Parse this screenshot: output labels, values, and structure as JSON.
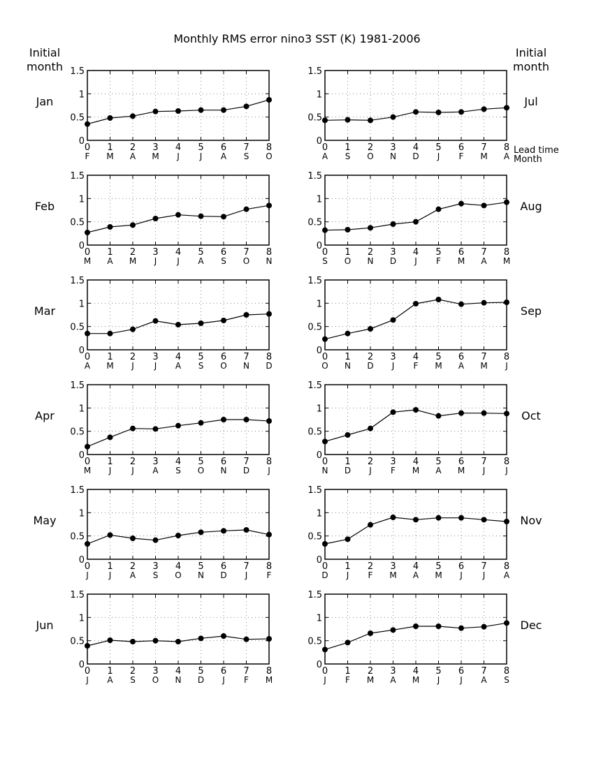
{
  "title": "Monthly RMS error   nino3 SST (K) 1981-2006",
  "left_header": [
    "Initial",
    "month"
  ],
  "right_header": [
    "Initial",
    "month"
  ],
  "lead_time_label": "Lead time",
  "month_axis_label": "Month",
  "chart_data": [
    {
      "type": "line",
      "panel": "Jan",
      "x": [
        0,
        1,
        2,
        3,
        4,
        5,
        6,
        7,
        8
      ],
      "months": [
        "F",
        "M",
        "A",
        "M",
        "J",
        "J",
        "A",
        "S",
        "O"
      ],
      "values": [
        0.35,
        0.48,
        0.52,
        0.62,
        0.63,
        0.65,
        0.65,
        0.73,
        0.87
      ],
      "ylim": [
        0,
        1.5
      ],
      "yticks": [
        "0",
        "0.5",
        "1",
        "1.5"
      ]
    },
    {
      "type": "line",
      "panel": "Jul",
      "x": [
        0,
        1,
        2,
        3,
        4,
        5,
        6,
        7,
        8
      ],
      "months": [
        "A",
        "S",
        "O",
        "N",
        "D",
        "J",
        "F",
        "M",
        "A"
      ],
      "values": [
        0.43,
        0.44,
        0.43,
        0.5,
        0.61,
        0.6,
        0.61,
        0.67,
        0.7
      ],
      "ylim": [
        0,
        1.5
      ],
      "yticks": [
        "0",
        "0.5",
        "1",
        "1.5"
      ]
    },
    {
      "type": "line",
      "panel": "Feb",
      "x": [
        0,
        1,
        2,
        3,
        4,
        5,
        6,
        7,
        8
      ],
      "months": [
        "M",
        "A",
        "M",
        "J",
        "J",
        "A",
        "S",
        "O",
        "N"
      ],
      "values": [
        0.27,
        0.39,
        0.43,
        0.57,
        0.65,
        0.62,
        0.61,
        0.77,
        0.85
      ],
      "ylim": [
        0,
        1.5
      ],
      "yticks": [
        "0",
        "0.5",
        "1",
        "1.5"
      ]
    },
    {
      "type": "line",
      "panel": "Aug",
      "x": [
        0,
        1,
        2,
        3,
        4,
        5,
        6,
        7,
        8
      ],
      "months": [
        "S",
        "O",
        "N",
        "D",
        "J",
        "F",
        "M",
        "A",
        "M"
      ],
      "values": [
        0.32,
        0.33,
        0.37,
        0.45,
        0.5,
        0.77,
        0.89,
        0.85,
        0.92
      ],
      "ylim": [
        0,
        1.5
      ],
      "yticks": [
        "0",
        "0.5",
        "1",
        "1.5"
      ]
    },
    {
      "type": "line",
      "panel": "Mar",
      "x": [
        0,
        1,
        2,
        3,
        4,
        5,
        6,
        7,
        8
      ],
      "months": [
        "A",
        "M",
        "J",
        "J",
        "A",
        "S",
        "O",
        "N",
        "D"
      ],
      "values": [
        0.35,
        0.35,
        0.44,
        0.62,
        0.54,
        0.57,
        0.63,
        0.75,
        0.77
      ],
      "ylim": [
        0,
        1.5
      ],
      "yticks": [
        "0",
        "0.5",
        "1",
        "1.5"
      ]
    },
    {
      "type": "line",
      "panel": "Sep",
      "x": [
        0,
        1,
        2,
        3,
        4,
        5,
        6,
        7,
        8
      ],
      "months": [
        "O",
        "N",
        "D",
        "J",
        "F",
        "M",
        "A",
        "M",
        "J"
      ],
      "values": [
        0.23,
        0.35,
        0.45,
        0.64,
        0.99,
        1.08,
        0.98,
        1.01,
        1.02
      ],
      "ylim": [
        0,
        1.5
      ],
      "yticks": [
        "0",
        "0.5",
        "1",
        "1.5"
      ]
    },
    {
      "type": "line",
      "panel": "Apr",
      "x": [
        0,
        1,
        2,
        3,
        4,
        5,
        6,
        7,
        8
      ],
      "months": [
        "M",
        "J",
        "J",
        "A",
        "S",
        "O",
        "N",
        "D",
        "J"
      ],
      "values": [
        0.17,
        0.37,
        0.56,
        0.55,
        0.62,
        0.68,
        0.75,
        0.75,
        0.72
      ],
      "ylim": [
        0,
        1.5
      ],
      "yticks": [
        "0",
        "0.5",
        "1",
        "1.5"
      ]
    },
    {
      "type": "line",
      "panel": "Oct",
      "x": [
        0,
        1,
        2,
        3,
        4,
        5,
        6,
        7,
        8
      ],
      "months": [
        "N",
        "D",
        "J",
        "F",
        "M",
        "A",
        "M",
        "J",
        "J"
      ],
      "values": [
        0.28,
        0.42,
        0.56,
        0.91,
        0.96,
        0.83,
        0.89,
        0.89,
        0.88
      ],
      "ylim": [
        0,
        1.5
      ],
      "yticks": [
        "0",
        "0.5",
        "1",
        "1.5"
      ]
    },
    {
      "type": "line",
      "panel": "May",
      "x": [
        0,
        1,
        2,
        3,
        4,
        5,
        6,
        7,
        8
      ],
      "months": [
        "J",
        "J",
        "A",
        "S",
        "O",
        "N",
        "D",
        "J",
        "F"
      ],
      "values": [
        0.33,
        0.52,
        0.45,
        0.41,
        0.51,
        0.58,
        0.61,
        0.63,
        0.53
      ],
      "ylim": [
        0,
        1.5
      ],
      "yticks": [
        "0",
        "0.5",
        "1",
        "1.5"
      ]
    },
    {
      "type": "line",
      "panel": "Nov",
      "x": [
        0,
        1,
        2,
        3,
        4,
        5,
        6,
        7,
        8
      ],
      "months": [
        "D",
        "J",
        "F",
        "M",
        "A",
        "M",
        "J",
        "J",
        "A"
      ],
      "values": [
        0.33,
        0.43,
        0.74,
        0.9,
        0.85,
        0.89,
        0.89,
        0.85,
        0.81
      ],
      "ylim": [
        0,
        1.5
      ],
      "yticks": [
        "0",
        "0.5",
        "1",
        "1.5"
      ]
    },
    {
      "type": "line",
      "panel": "Jun",
      "x": [
        0,
        1,
        2,
        3,
        4,
        5,
        6,
        7,
        8
      ],
      "months": [
        "J",
        "A",
        "S",
        "O",
        "N",
        "D",
        "J",
        "F",
        "M"
      ],
      "values": [
        0.39,
        0.51,
        0.48,
        0.5,
        0.48,
        0.55,
        0.6,
        0.53,
        0.54
      ],
      "ylim": [
        0,
        1.5
      ],
      "yticks": [
        "0",
        "0.5",
        "1",
        "1.5"
      ]
    },
    {
      "type": "line",
      "panel": "Dec",
      "x": [
        0,
        1,
        2,
        3,
        4,
        5,
        6,
        7,
        8
      ],
      "months": [
        "J",
        "F",
        "M",
        "A",
        "M",
        "J",
        "J",
        "A",
        "S"
      ],
      "values": [
        0.31,
        0.46,
        0.66,
        0.73,
        0.81,
        0.81,
        0.77,
        0.8,
        0.88
      ],
      "ylim": [
        0,
        1.5
      ],
      "yticks": [
        "0",
        "0.5",
        "1",
        "1.5"
      ]
    }
  ]
}
